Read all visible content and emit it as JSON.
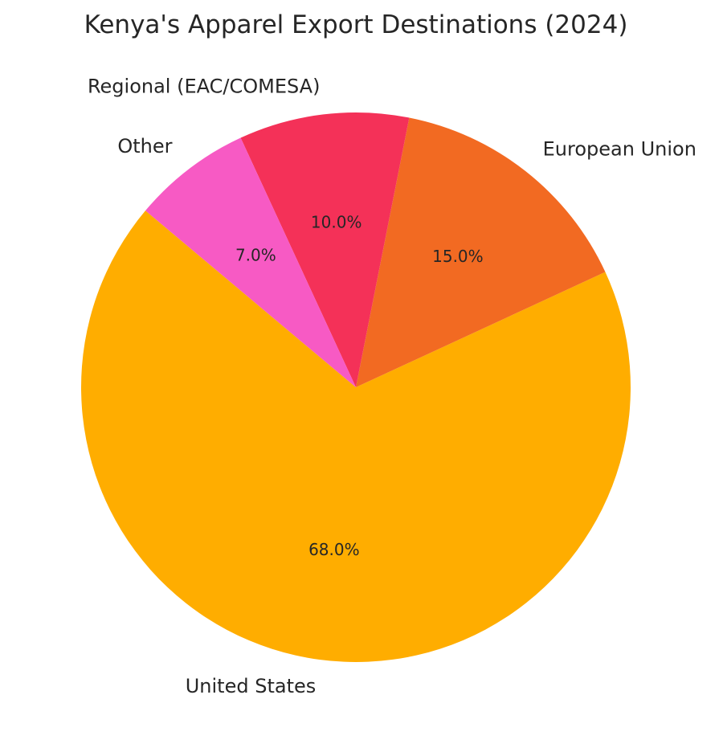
{
  "chart_data": {
    "type": "pie",
    "title": "Kenya's Apparel Export Destinations (2024)",
    "slices": [
      {
        "label": "United States",
        "value": 68.0,
        "percent_label": "68.0%",
        "color": "#FFAD00"
      },
      {
        "label": "European Union",
        "value": 15.0,
        "percent_label": "15.0%",
        "color": "#F26A22"
      },
      {
        "label": "Regional (EAC/COMESA)",
        "value": 10.0,
        "percent_label": "10.0%",
        "color": "#F43158"
      },
      {
        "label": "Other",
        "value": 7.0,
        "percent_label": "7.0%",
        "color": "#F75AC4"
      }
    ],
    "start_angle_deg": 140,
    "direction": "counterclockwise",
    "legend": "none"
  }
}
